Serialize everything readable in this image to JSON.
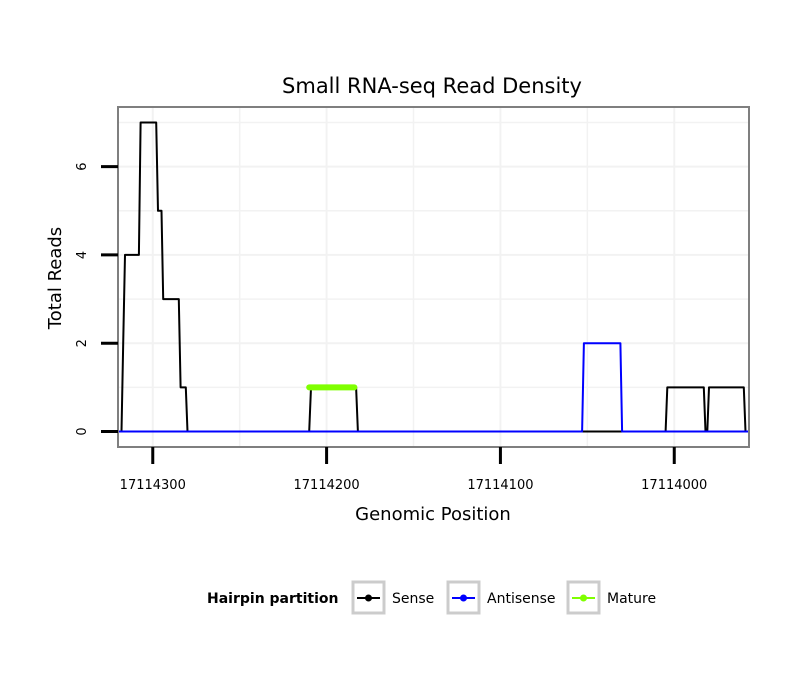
{
  "chart_data": {
    "type": "line",
    "title": "Small RNA-seq Read Density",
    "xlabel": "Genomic Position",
    "ylabel": "Total Reads",
    "x_reversed": true,
    "xlim": [
      17114320,
      17113957
    ],
    "ylim": [
      -0.35,
      7.35
    ],
    "x_ticks": [
      17114300,
      17114200,
      17114100,
      17114000
    ],
    "x_tick_labels": [
      "17114300",
      "17114200",
      "17114100",
      "17114000"
    ],
    "y_ticks": [
      0,
      2,
      4,
      6
    ],
    "y_tick_labels": [
      "0",
      "2",
      "4",
      "6"
    ],
    "grid": true,
    "legend": {
      "title": "Hairpin partition",
      "position": "bottom",
      "entries": [
        "Sense",
        "Antisense",
        "Mature"
      ]
    },
    "series": [
      {
        "name": "Sense",
        "color": "#000000",
        "x": [
          17114320,
          17114318,
          17114317,
          17114316,
          17114308,
          17114307,
          17114298,
          17114297,
          17114295,
          17114294,
          17114291,
          17114290,
          17114285,
          17114284,
          17114281,
          17114280,
          17114210,
          17114209,
          17114183,
          17114182,
          17114005,
          17114004,
          17113983,
          17113982,
          17113981,
          17113980,
          17113960,
          17113959,
          17113957
        ],
        "y": [
          0,
          0,
          2,
          4,
          4,
          7,
          7,
          5,
          5,
          3,
          3,
          3,
          3,
          1,
          1,
          0,
          0,
          1,
          1,
          0,
          0,
          1,
          1,
          0,
          0,
          1,
          1,
          0,
          0
        ]
      },
      {
        "name": "Antisense",
        "color": "#0000ff",
        "x": [
          17114320,
          17114053,
          17114052,
          17114031,
          17114030,
          17113957
        ],
        "y": [
          0,
          0,
          2,
          2,
          0,
          0
        ]
      },
      {
        "name": "Mature",
        "color": "#7fff00",
        "x": [
          17114210,
          17114184
        ],
        "y": [
          1,
          1
        ]
      }
    ]
  }
}
